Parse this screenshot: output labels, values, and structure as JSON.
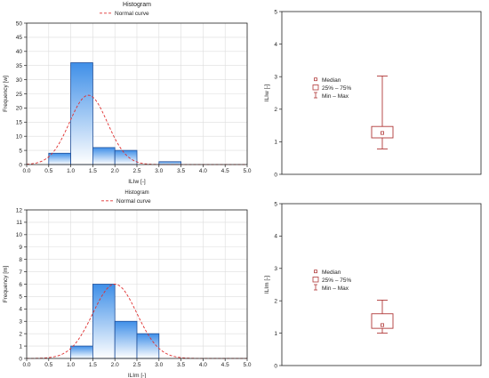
{
  "colors": {
    "bar_top": "#3f8fe8",
    "bar_bottom": "#ffffff",
    "bar_stroke": "#1f4f9a",
    "curve": "#e03030",
    "box": "#b03838",
    "axis": "#222222",
    "grid": "#dddddd"
  },
  "chart_data": [
    {
      "type": "bar",
      "title": "Histogram",
      "legend": "Normal curve",
      "xlabel": "ILIw [-]",
      "ylabel": "Frequency [w]",
      "bins": [
        [
          0.5,
          1.0
        ],
        [
          1.0,
          1.5
        ],
        [
          1.5,
          2.0
        ],
        [
          2.0,
          2.5
        ],
        [
          3.0,
          3.5
        ]
      ],
      "values": [
        4,
        36,
        6,
        5,
        1
      ],
      "xlim": [
        0,
        5
      ],
      "ylim": [
        0,
        50
      ],
      "xticks": [
        "0.0",
        "0.5",
        "1.0",
        "1.5",
        "2.0",
        "2.5",
        "3.0",
        "3.5",
        "4.0",
        "4.5",
        "5.0"
      ],
      "yticks": [
        "0",
        "5",
        "10",
        "15",
        "20",
        "25",
        "30",
        "35",
        "40",
        "45",
        "50"
      ],
      "normal_curve": {
        "mean": 1.4,
        "sd": 0.43,
        "peak": 24.5
      }
    },
    {
      "type": "box",
      "ylabel": "ILIw [-]",
      "ylim": [
        0,
        5
      ],
      "yticks": [
        "0",
        "1",
        "2",
        "3",
        "4",
        "5"
      ],
      "median": 1.27,
      "q1": 1.12,
      "q3": 1.47,
      "min": 0.78,
      "max": 3.02,
      "legend": [
        "Median",
        "25% – 75%",
        "Min – Max"
      ]
    },
    {
      "type": "bar",
      "title": "Histogram",
      "legend": "Normal curve",
      "xlabel": "ILIm [-]",
      "ylabel": "Frequency [m]",
      "bins": [
        [
          1.0,
          1.5
        ],
        [
          1.5,
          2.0
        ],
        [
          2.0,
          2.5
        ],
        [
          2.5,
          3.0
        ]
      ],
      "values": [
        1,
        6,
        3,
        2
      ],
      "xlim": [
        0,
        5
      ],
      "ylim": [
        0,
        12
      ],
      "xticks": [
        "0.0",
        "0.5",
        "1.0",
        "1.5",
        "2.0",
        "2.5",
        "3.0",
        "3.5",
        "4.0",
        "4.5",
        "5.0"
      ],
      "yticks": [
        "0",
        "1",
        "2",
        "3",
        "4",
        "5",
        "6",
        "7",
        "8",
        "9",
        "10",
        "11",
        "12"
      ],
      "normal_curve": {
        "mean": 2.0,
        "sd": 0.5,
        "peak": 6
      }
    },
    {
      "type": "box",
      "ylabel": "ILIm [-]",
      "ylim": [
        0,
        5
      ],
      "yticks": [
        "0",
        "1",
        "2",
        "3",
        "4",
        "5"
      ],
      "median": 1.25,
      "q1": 1.15,
      "q3": 1.6,
      "min": 1.0,
      "max": 2.02,
      "legend": [
        "Median",
        "25% – 75%",
        "Min – Max"
      ]
    }
  ]
}
